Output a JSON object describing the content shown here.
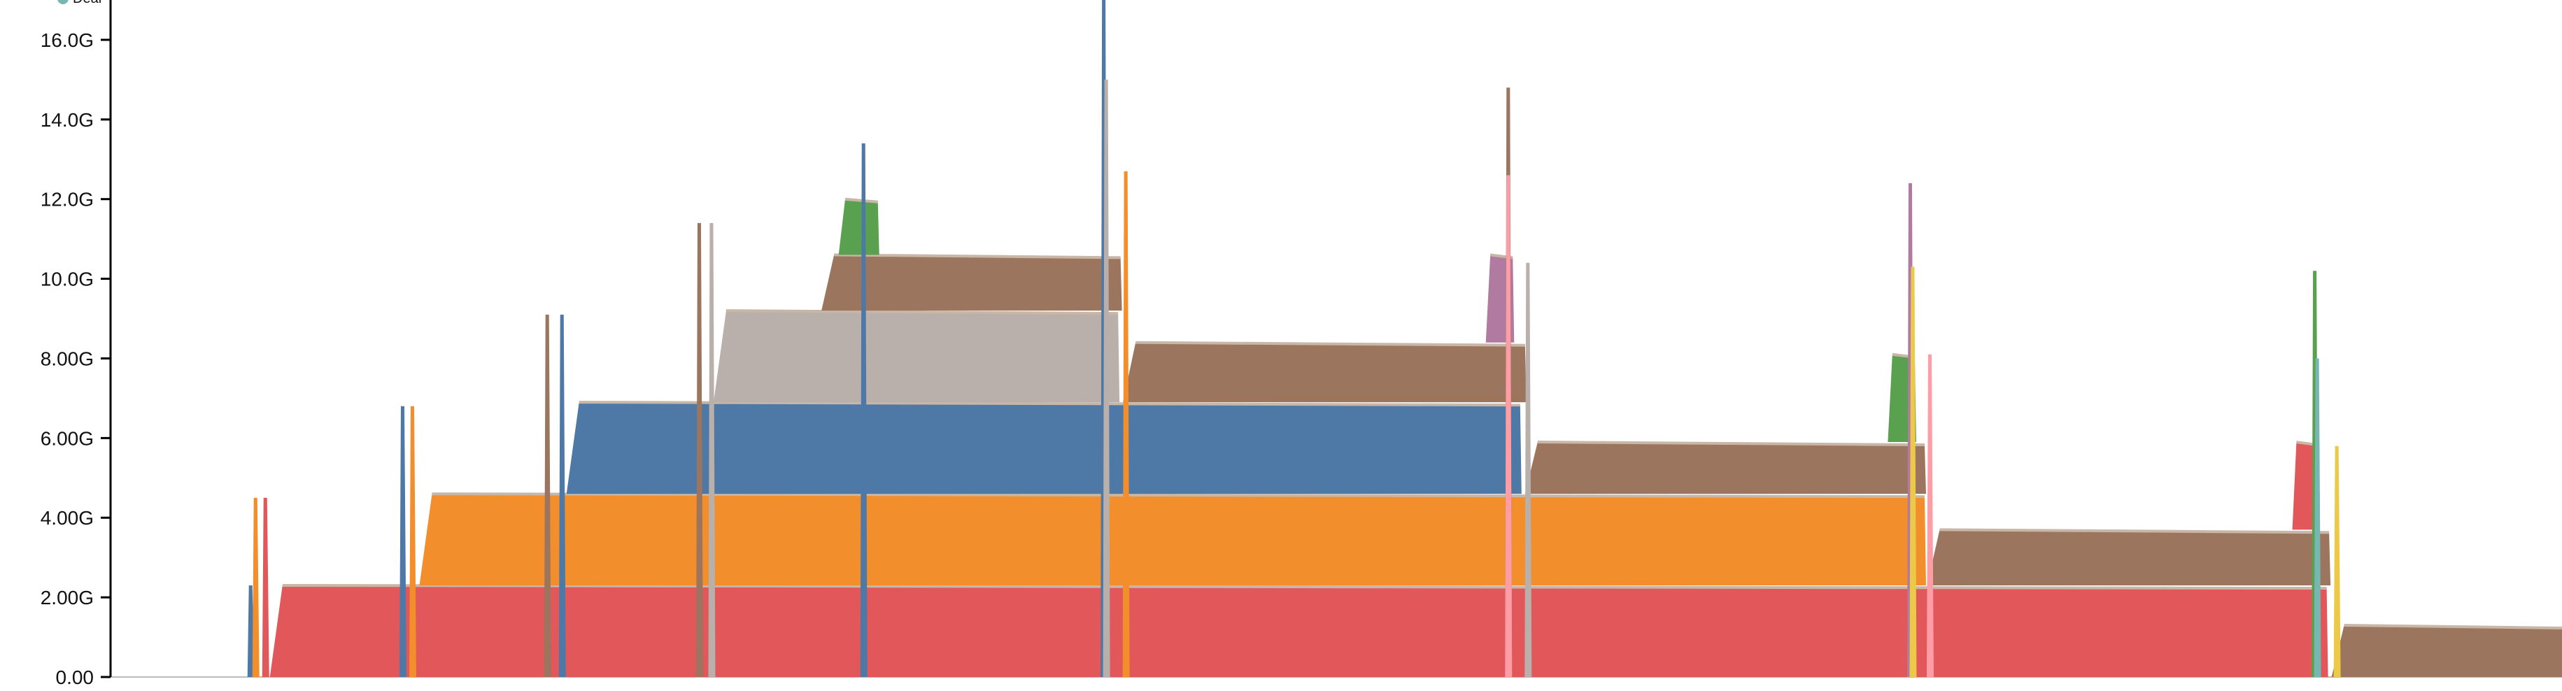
{
  "chart_data": {
    "type": "area",
    "title": "",
    "xlabel": "",
    "ylabel": "",
    "ylim": [
      0,
      17
    ],
    "y_tick_labels": [
      "0.00",
      "2.00G",
      "4.00G",
      "6.00G",
      "8.00G",
      "10.0G",
      "12.0G",
      "14.0G",
      "16.0G"
    ],
    "y_tick_values": [
      0,
      2,
      4,
      6,
      8,
      10,
      12,
      14,
      16
    ],
    "xlim": [
      0,
      100
    ],
    "grid": false,
    "legend": {
      "position": "top-left",
      "label": "Deal"
    },
    "colors": {
      "red": "#e1575a",
      "orange": "#f28e2c",
      "blue": "#4e79a7",
      "tan": "#bab0ab",
      "brown": "#9c755f",
      "green": "#59a14f",
      "purple": "#b07aa1",
      "pink": "#ff9da7",
      "yellow": "#edc949",
      "teal": "#76b7b2"
    },
    "series": [
      {
        "color": "red",
        "start": 6.5,
        "end": 90.4,
        "value": 2.3
      },
      {
        "color": "orange",
        "start": 12.6,
        "end": 74.0,
        "value": 2.3
      },
      {
        "color": "blue",
        "start": 18.6,
        "end": 57.5,
        "value": 2.3
      },
      {
        "color": "tan",
        "start": 24.6,
        "end": 41.1,
        "value": 2.3
      },
      {
        "color": "brown",
        "start": 29.0,
        "end": 41.2,
        "value": 1.4
      },
      {
        "color": "green",
        "start": 29.7,
        "end": 31.3,
        "value": 1.4
      },
      {
        "color": "brown",
        "start": 41.3,
        "end": 57.7,
        "value": 1.5
      },
      {
        "color": "purple",
        "start": 56.1,
        "end": 57.2,
        "value": 2.2
      },
      {
        "color": "brown",
        "start": 57.7,
        "end": 74.0,
        "value": 1.3
      },
      {
        "color": "green",
        "start": 72.5,
        "end": 73.6,
        "value": 2.2
      },
      {
        "color": "brown",
        "start": 74.1,
        "end": 90.5,
        "value": 1.4
      },
      {
        "color": "red",
        "start": 89.0,
        "end": 90.0,
        "value": 2.2
      },
      {
        "color": "brown",
        "start": 90.6,
        "end": 100,
        "value": 1.3
      }
    ],
    "spikes": [
      {
        "color": "blue",
        "x": 5.7,
        "value": 2.3
      },
      {
        "color": "orange",
        "x": 5.9,
        "value": 4.5
      },
      {
        "color": "red",
        "x": 6.3,
        "value": 4.5
      },
      {
        "color": "blue",
        "x": 11.9,
        "value": 6.8
      },
      {
        "color": "orange",
        "x": 12.3,
        "value": 6.8
      },
      {
        "color": "brown",
        "x": 17.8,
        "value": 9.1
      },
      {
        "color": "blue",
        "x": 18.4,
        "value": 9.1
      },
      {
        "color": "brown",
        "x": 24.0,
        "value": 11.4
      },
      {
        "color": "tan",
        "x": 24.5,
        "value": 11.4
      },
      {
        "color": "blue",
        "x": 30.7,
        "value": 13.4
      },
      {
        "color": "blue",
        "x": 40.5,
        "value": 17.0
      },
      {
        "color": "tan",
        "x": 40.6,
        "value": 15.0
      },
      {
        "color": "orange",
        "x": 41.4,
        "value": 12.7
      },
      {
        "color": "brown",
        "x": 57.0,
        "value": 14.8
      },
      {
        "color": "pink",
        "x": 57.0,
        "value": 12.6
      },
      {
        "color": "tan",
        "x": 57.8,
        "value": 10.4
      },
      {
        "color": "purple",
        "x": 73.4,
        "value": 12.4
      },
      {
        "color": "yellow",
        "x": 73.5,
        "value": 10.3
      },
      {
        "color": "pink",
        "x": 74.2,
        "value": 8.1
      },
      {
        "color": "green",
        "x": 89.9,
        "value": 10.2
      },
      {
        "color": "teal",
        "x": 90.0,
        "value": 8.0
      },
      {
        "color": "yellow",
        "x": 90.8,
        "value": 5.8
      }
    ]
  }
}
